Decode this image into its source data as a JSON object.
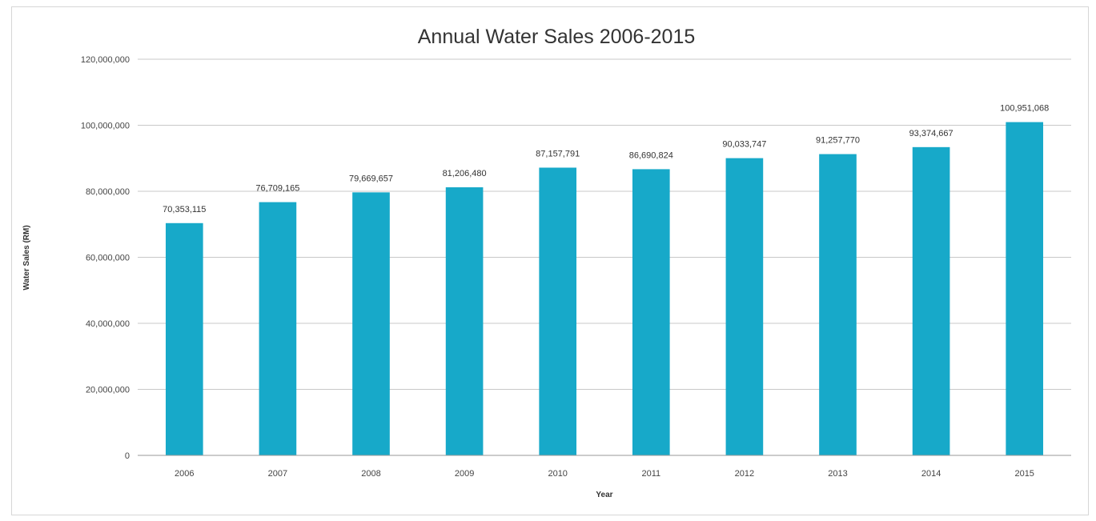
{
  "chart_data": {
    "type": "bar",
    "title": "Annual Water Sales 2006-2015",
    "xlabel": "Year",
    "ylabel": "Water Sales (RM)",
    "categories": [
      "2006",
      "2007",
      "2008",
      "2009",
      "2010",
      "2011",
      "2012",
      "2013",
      "2014",
      "2015"
    ],
    "values": [
      70353115,
      76709165,
      79669657,
      81206480,
      87157791,
      86690824,
      90033747,
      91257770,
      93374667,
      100951068
    ],
    "data_labels": [
      "70,353,115",
      "76,709,165",
      "79,669,657",
      "81,206,480",
      "87,157,791",
      "86,690,824",
      "90,033,747",
      "91,257,770",
      "93,374,667",
      "100,951,068"
    ],
    "ylim": [
      0,
      120000000
    ],
    "yticks": [
      0,
      20000000,
      40000000,
      60000000,
      80000000,
      100000000,
      120000000
    ],
    "ytick_labels": [
      "0",
      "20,000,000",
      "40,000,000",
      "60,000,000",
      "80,000,000",
      "100,000,000",
      "120,000,000"
    ],
    "grid": true,
    "legend": "none",
    "bar_color": "#17a9c9"
  }
}
